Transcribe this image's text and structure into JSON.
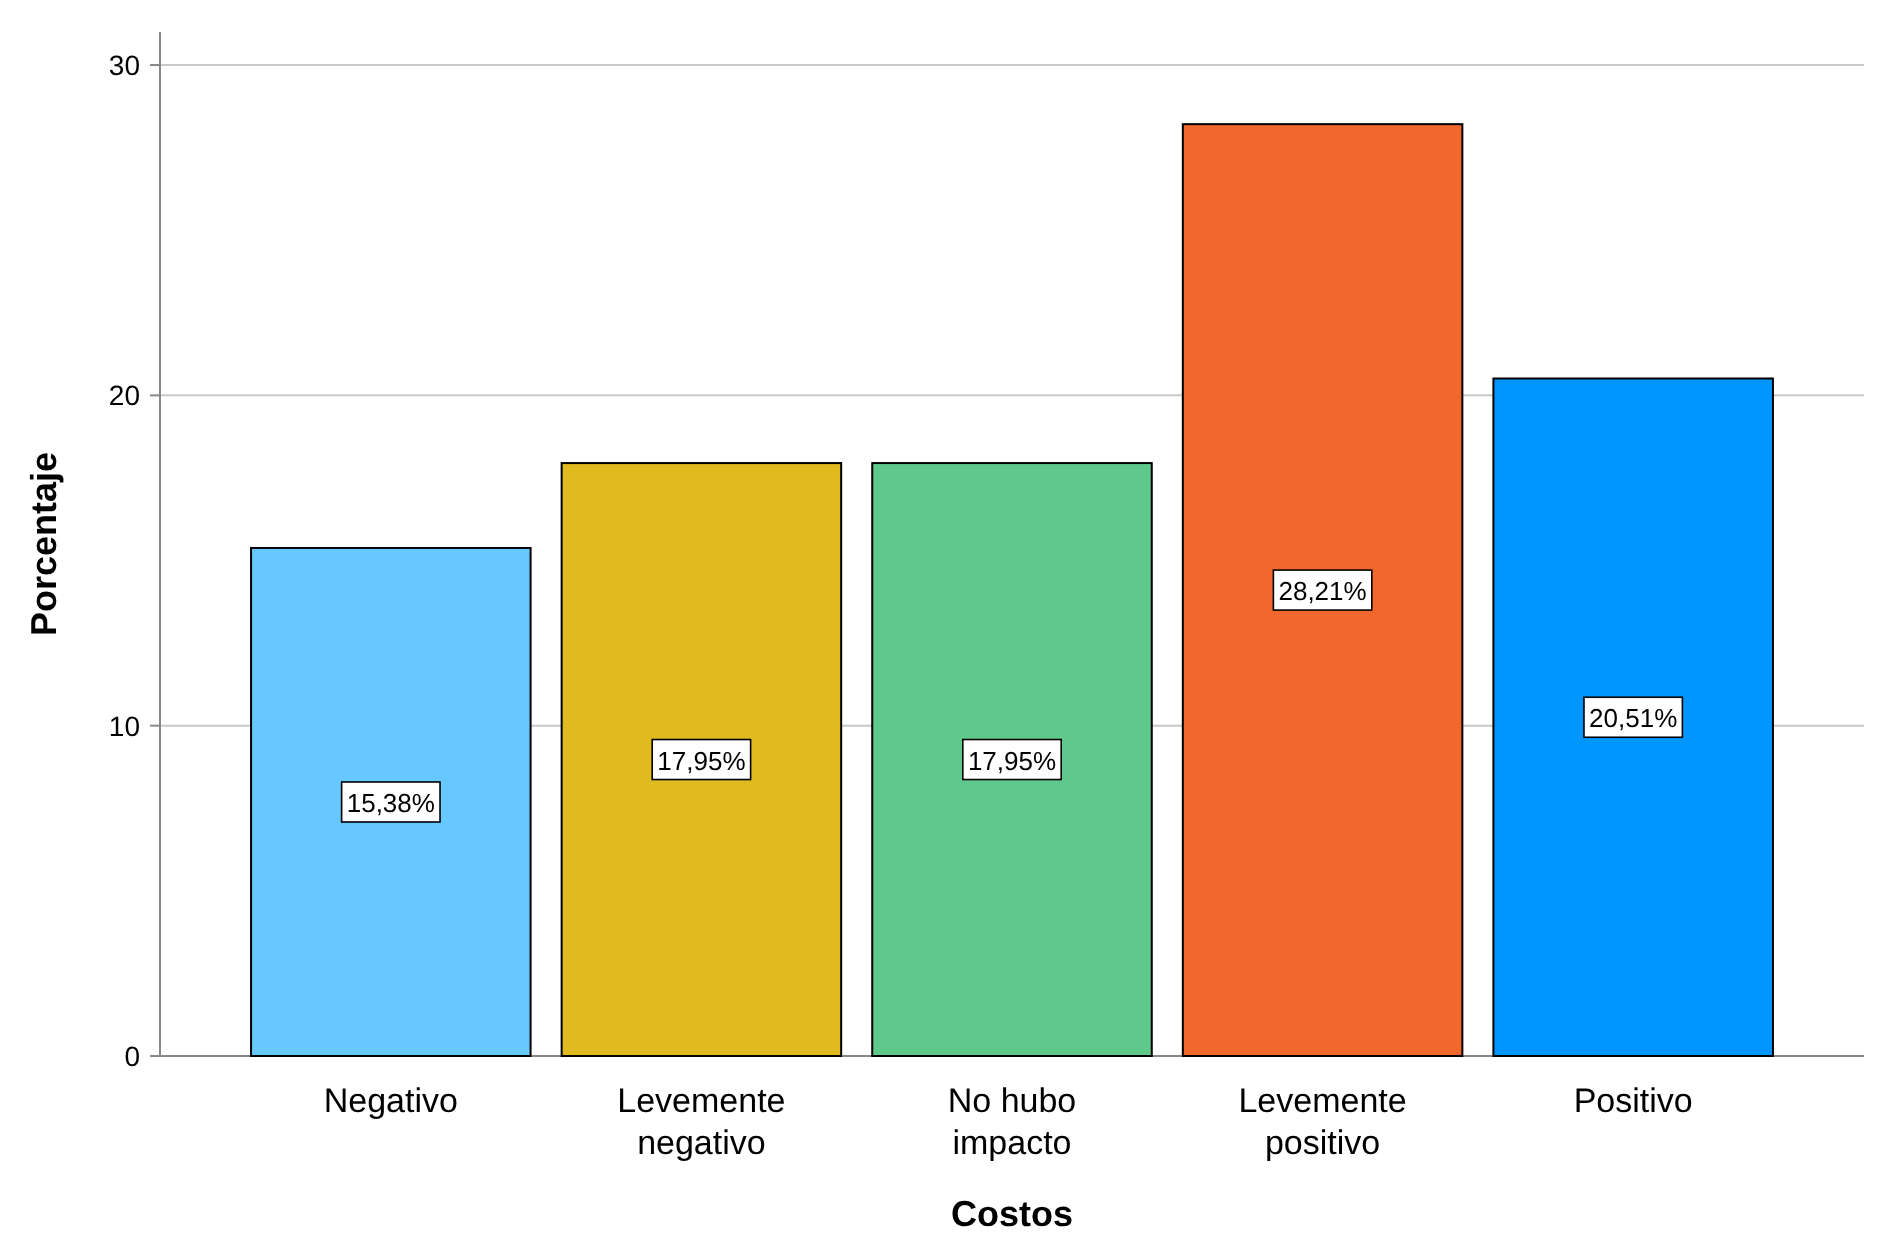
{
  "chart_data": {
    "type": "bar",
    "xlabel": "Costos",
    "ylabel": "Porcentaje",
    "categories": [
      "Negativo",
      "Levemente negativo",
      "No hubo impacto",
      "Levemente positivo",
      "Positivo"
    ],
    "values": [
      15.38,
      17.95,
      17.95,
      28.21,
      20.51
    ],
    "value_labels": [
      "15,38%",
      "17,95%",
      "17,95%",
      "28,21%",
      "20,51%"
    ],
    "colors": [
      "#66c8ff",
      "#e0bb20",
      "#5ec98a",
      "#f2672c",
      "#0096ff"
    ],
    "ylim": [
      0,
      31
    ],
    "yticks": [
      0,
      10,
      20,
      30
    ],
    "grid": "y"
  }
}
